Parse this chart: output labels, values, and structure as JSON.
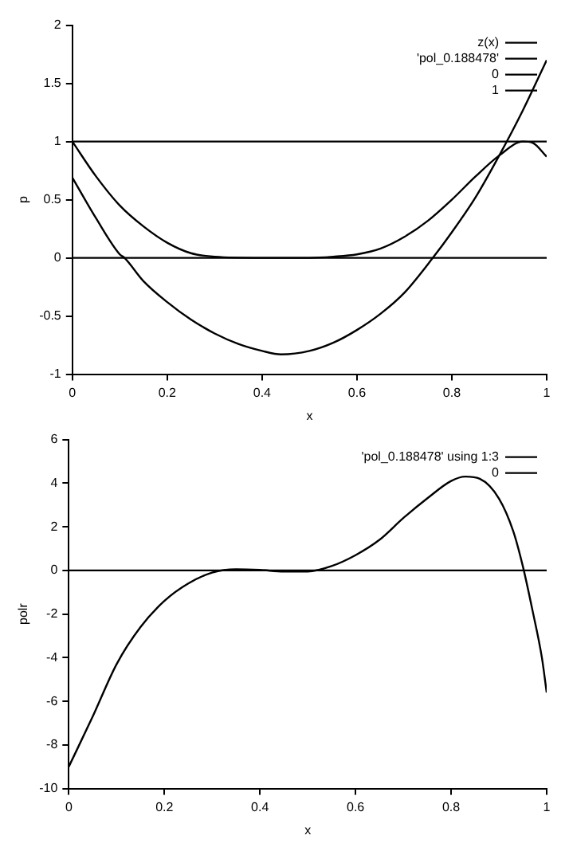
{
  "chart_data": [
    {
      "type": "line",
      "xlabel": "x",
      "ylabel": "p",
      "xlim": [
        0,
        1
      ],
      "ylim": [
        -1,
        2
      ],
      "xticks": [
        0,
        0.2,
        0.4,
        0.6,
        0.8,
        1
      ],
      "yticks": [
        -1,
        -0.5,
        0,
        0.5,
        1,
        1.5,
        2
      ],
      "grid": false,
      "legend": "top right",
      "marker": "none",
      "line_style": "solid",
      "series": [
        {
          "name": "z(x)",
          "color": "#000000",
          "x": [
            0,
            0.05,
            0.1,
            0.11,
            0.15,
            0.2,
            0.25,
            0.3,
            0.35,
            0.4,
            0.44,
            0.5,
            0.55,
            0.6,
            0.65,
            0.7,
            0.76,
            0.8,
            0.85,
            0.9,
            0.95,
            1
          ],
          "values": [
            0.69,
            0.34,
            0.03,
            0,
            -0.2,
            -0.38,
            -0.53,
            -0.65,
            -0.74,
            -0.8,
            -0.83,
            -0.8,
            -0.73,
            -0.62,
            -0.48,
            -0.3,
            0,
            0.22,
            0.52,
            0.88,
            1.27,
            1.7
          ]
        },
        {
          "name": "'pol_0.188478'",
          "color": "#000000",
          "x": [
            0,
            0.05,
            0.1,
            0.15,
            0.2,
            0.25,
            0.3,
            0.4,
            0.5,
            0.55,
            0.6,
            0.65,
            0.7,
            0.75,
            0.8,
            0.85,
            0.9,
            0.95,
            0.97,
            1
          ],
          "values": [
            1,
            0.7,
            0.45,
            0.27,
            0.13,
            0.04,
            0.01,
            0,
            0,
            0.01,
            0.03,
            0.08,
            0.18,
            0.32,
            0.5,
            0.7,
            0.88,
            1,
            0.99,
            0.87
          ]
        },
        {
          "name": "0",
          "color": "#000000",
          "x": [
            0,
            1
          ],
          "values": [
            0,
            0
          ]
        },
        {
          "name": "1",
          "color": "#000000",
          "x": [
            0,
            1
          ],
          "values": [
            1,
            1
          ]
        }
      ]
    },
    {
      "type": "line",
      "xlabel": "x",
      "ylabel": "polr",
      "xlim": [
        0,
        1
      ],
      "ylim": [
        -10,
        6
      ],
      "xticks": [
        0,
        0.2,
        0.4,
        0.6,
        0.8,
        1
      ],
      "yticks": [
        -10,
        -8,
        -6,
        -4,
        -2,
        0,
        2,
        4,
        6
      ],
      "grid": false,
      "legend": "top right",
      "marker": "none",
      "line_style": "solid",
      "series": [
        {
          "name": "'pol_0.188478' using 1:3",
          "color": "#000000",
          "x": [
            0,
            0.05,
            0.1,
            0.15,
            0.2,
            0.25,
            0.3,
            0.35,
            0.4,
            0.45,
            0.5,
            0.55,
            0.6,
            0.65,
            0.7,
            0.75,
            0.8,
            0.83,
            0.86,
            0.9,
            0.93,
            0.95,
            0.97,
            0.99,
            1
          ],
          "values": [
            -9,
            -6.7,
            -4.3,
            -2.6,
            -1.4,
            -0.6,
            -0.1,
            0.05,
            0.02,
            -0.05,
            -0.05,
            0.2,
            0.7,
            1.4,
            2.4,
            3.3,
            4.1,
            4.3,
            4.2,
            3.3,
            1.8,
            0.2,
            -1.8,
            -4,
            -5.6
          ]
        },
        {
          "name": "0",
          "color": "#000000",
          "x": [
            0,
            1
          ],
          "values": [
            0,
            0
          ]
        }
      ]
    }
  ]
}
